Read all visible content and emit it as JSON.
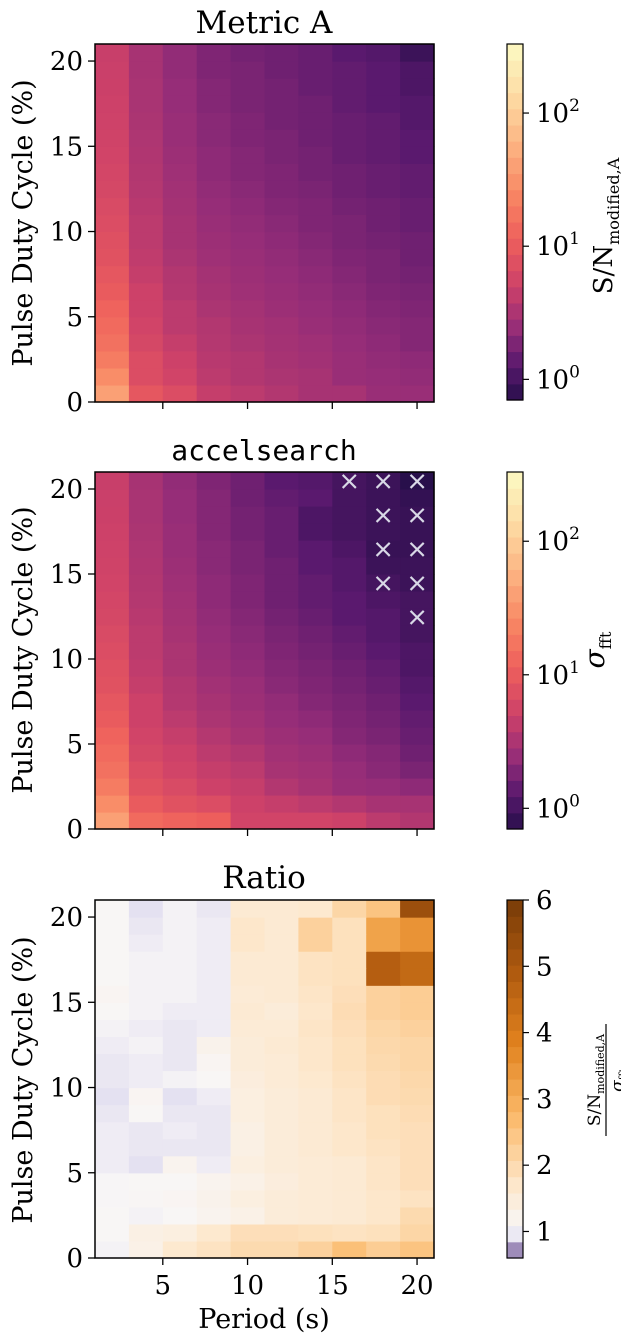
{
  "chart_data": [
    {
      "type": "heatmap",
      "title": "Metric A",
      "title_font": "serif",
      "ylabel": "Pulse Duty Cycle (%)",
      "xlabel": "",
      "x": [
        2,
        4,
        6,
        8,
        10,
        12,
        14,
        16,
        18,
        20
      ],
      "y": [
        0.5,
        1.5,
        2.5,
        3.5,
        4.5,
        5.5,
        6.5,
        7.5,
        8.5,
        9.5,
        10.5,
        11.5,
        12.5,
        13.5,
        14.5,
        15.5,
        16.5,
        17.5,
        18.5,
        19.5,
        20.5
      ],
      "xlim": [
        1,
        21
      ],
      "ylim": [
        0,
        21
      ],
      "yticks": [
        0,
        5,
        10,
        15,
        20
      ],
      "ytick_labels": [
        "0",
        "5",
        "10",
        "15",
        "20"
      ],
      "xticks": [
        5,
        10,
        15,
        20
      ],
      "colorbar": {
        "scale": "log",
        "vmin": 0.7,
        "vmax": 330,
        "cmap": "magma",
        "ticks": [
          1,
          10,
          100
        ],
        "tick_labels": [
          "10⁰",
          "10¹",
          "10²"
        ],
        "label": "S/N_modified,A"
      },
      "values": [
        [
          40,
          9,
          7,
          4.5,
          4,
          3.5,
          3,
          3,
          2.5,
          2.5
        ],
        [
          28,
          7,
          5.5,
          4,
          3.5,
          3.2,
          3,
          2.5,
          2.4,
          2.3
        ],
        [
          20,
          7,
          5,
          3.8,
          3.5,
          3,
          2.8,
          2.5,
          2.3,
          2.2
        ],
        [
          16,
          6,
          4.5,
          3.6,
          3.2,
          2.9,
          2.7,
          2.4,
          2.2,
          2
        ],
        [
          14,
          5.5,
          4,
          3.5,
          3,
          2.8,
          2.5,
          2.3,
          2.1,
          2
        ],
        [
          12,
          5,
          4,
          3.2,
          2.9,
          2.6,
          2.4,
          2.2,
          2,
          1.9
        ],
        [
          10,
          5,
          3.6,
          3,
          2.7,
          2.5,
          2.3,
          2.1,
          1.9,
          1.8
        ],
        [
          9,
          4.5,
          3.5,
          2.9,
          2.6,
          2.4,
          2.2,
          2,
          1.8,
          1.7
        ],
        [
          8,
          4.2,
          3.2,
          2.7,
          2.5,
          2.3,
          2.1,
          1.9,
          1.8,
          1.6
        ],
        [
          7.5,
          4,
          3,
          2.6,
          2.4,
          2.2,
          2,
          1.8,
          1.7,
          1.6
        ],
        [
          7,
          4,
          3,
          2.5,
          2.3,
          2.1,
          1.9,
          1.8,
          1.6,
          1.5
        ],
        [
          6.5,
          3.8,
          2.9,
          2.4,
          2.2,
          2,
          1.9,
          1.7,
          1.6,
          1.5
        ],
        [
          6,
          3.6,
          2.8,
          2.3,
          2.1,
          1.9,
          1.8,
          1.6,
          1.5,
          1.4
        ],
        [
          5.8,
          3.5,
          2.7,
          2.2,
          2,
          1.9,
          1.7,
          1.6,
          1.5,
          1.4
        ],
        [
          5.5,
          3.4,
          2.6,
          2.2,
          2,
          1.8,
          1.7,
          1.5,
          1.4,
          1.3
        ],
        [
          5.3,
          3.3,
          2.5,
          2.1,
          1.9,
          1.8,
          1.6,
          1.5,
          1.4,
          1.3
        ],
        [
          5.1,
          3.2,
          2.5,
          2.1,
          1.9,
          1.7,
          1.6,
          1.5,
          1.4,
          1.2
        ],
        [
          5,
          3.1,
          2.4,
          2,
          1.8,
          1.7,
          1.6,
          1.4,
          1.3,
          1.2
        ],
        [
          4.9,
          3.1,
          2.4,
          2,
          1.8,
          1.7,
          1.5,
          1.4,
          1.3,
          1.1
        ],
        [
          4.8,
          3,
          2.3,
          1.9,
          1.8,
          1.6,
          1.5,
          1.4,
          1.3,
          1.1
        ],
        [
          4.7,
          3,
          2.3,
          1.9,
          1.7,
          1.6,
          1.5,
          1.3,
          1.2,
          0.9
        ]
      ]
    },
    {
      "type": "heatmap",
      "title": "accelsearch",
      "title_font": "mono",
      "ylabel": "Pulse Duty Cycle (%)",
      "xlabel": "",
      "x": [
        2,
        4,
        6,
        8,
        10,
        12,
        14,
        16,
        18,
        20
      ],
      "y": [
        0.5,
        1.5,
        2.5,
        3.5,
        4.5,
        5.5,
        6.5,
        7.5,
        8.5,
        9.5,
        10.5,
        11.5,
        12.5,
        13.5,
        14.5,
        15.5,
        16.5,
        17.5,
        18.5,
        19.5,
        20.5
      ],
      "xlim": [
        1,
        21
      ],
      "ylim": [
        0,
        21
      ],
      "yticks": [
        0,
        5,
        10,
        15,
        20
      ],
      "ytick_labels": [
        "0",
        "5",
        "10",
        "15",
        "20"
      ],
      "xticks": [
        5,
        10,
        15,
        20
      ],
      "colorbar": {
        "scale": "log",
        "vmin": 0.7,
        "vmax": 330,
        "cmap": "magma",
        "ticks": [
          1,
          10,
          100
        ],
        "tick_labels": [
          "10⁰",
          "10¹",
          "10²"
        ],
        "label": "σ_fft"
      },
      "values": [
        [
          40,
          14,
          12,
          11,
          5.5,
          5.5,
          5.5,
          5,
          4,
          3.5
        ],
        [
          28,
          10,
          8,
          7,
          5,
          4.5,
          4,
          3.5,
          3,
          3
        ],
        [
          20,
          8,
          6.5,
          5,
          4.5,
          3.5,
          3,
          2.5,
          2.4,
          2.2
        ],
        [
          16,
          7,
          5.5,
          4.5,
          4,
          3,
          2.8,
          2.4,
          2.1,
          1.8
        ],
        [
          14,
          6,
          5,
          4,
          3.5,
          2.8,
          2.6,
          2.2,
          2,
          1.6
        ],
        [
          12,
          5.5,
          4.5,
          3.6,
          3,
          2.6,
          2.4,
          2,
          1.8,
          1.5
        ],
        [
          10,
          5,
          4,
          3.2,
          2.8,
          2.4,
          2.2,
          1.9,
          1.7,
          1.4
        ],
        [
          9,
          5,
          3.6,
          3,
          2.6,
          2.3,
          2,
          1.8,
          1.6,
          1.3
        ],
        [
          8,
          4.5,
          3.5,
          2.8,
          2.5,
          2.1,
          1.9,
          1.7,
          1.5,
          1.2
        ],
        [
          7.5,
          4.2,
          3.2,
          2.6,
          2.3,
          2,
          1.8,
          1.6,
          1.4,
          1.1
        ],
        [
          7,
          4,
          3.2,
          2.5,
          2.2,
          1.9,
          1.7,
          1.5,
          1.3,
          1.1
        ],
        [
          6.5,
          4,
          3,
          2.4,
          2.1,
          1.8,
          1.6,
          1.4,
          1.2,
          1
        ],
        [
          6,
          3.8,
          2.9,
          2.3,
          2,
          1.7,
          1.5,
          1.3,
          1.2,
          1
        ],
        [
          5.8,
          3.6,
          2.8,
          2.2,
          1.9,
          1.6,
          1.4,
          1.3,
          1.1,
          1
        ],
        [
          5.5,
          3.5,
          2.7,
          2.2,
          1.9,
          1.6,
          1.4,
          1.2,
          1,
          0.9
        ],
        [
          5.3,
          3.4,
          2.6,
          2.1,
          1.8,
          1.6,
          1.3,
          1.2,
          0.9,
          0.9
        ],
        [
          5.1,
          3.3,
          2.5,
          2.1,
          1.8,
          1.5,
          1.3,
          1.1,
          0.85,
          0.85
        ],
        [
          5,
          3.2,
          2.5,
          2,
          1.7,
          1.5,
          1.1,
          1,
          0.9,
          0.85
        ],
        [
          4.9,
          3.1,
          2.4,
          2,
          1.7,
          1.5,
          1.1,
          1,
          0.9,
          0.85
        ],
        [
          4.8,
          3.1,
          2.4,
          2,
          1.6,
          1.4,
          1.3,
          1,
          0.9,
          0.8
        ],
        [
          4.7,
          3,
          2.3,
          1.9,
          1.6,
          1.3,
          1.2,
          1,
          0.9,
          0.55
        ]
      ],
      "markers": {
        "symbol": "×",
        "points": [
          [
            20,
            12
          ],
          [
            18,
            14
          ],
          [
            20,
            14
          ],
          [
            18,
            16
          ],
          [
            20,
            16
          ],
          [
            18,
            18
          ],
          [
            20,
            18
          ],
          [
            16,
            20
          ],
          [
            18,
            20
          ],
          [
            20,
            20
          ]
        ]
      }
    },
    {
      "type": "heatmap",
      "title": "Ratio",
      "title_font": "serif",
      "ylabel": "Pulse Duty Cycle (%)",
      "xlabel": "Period (s)",
      "x": [
        2,
        4,
        6,
        8,
        10,
        12,
        14,
        16,
        18,
        20
      ],
      "y": [
        0.5,
        1.5,
        2.5,
        3.5,
        4.5,
        5.5,
        6.5,
        7.5,
        8.5,
        9.5,
        10.5,
        11.5,
        12.5,
        13.5,
        14.5,
        15.5,
        16.5,
        17.5,
        18.5,
        19.5,
        20.5
      ],
      "xlim": [
        1,
        21
      ],
      "ylim": [
        0,
        21
      ],
      "yticks": [
        0,
        5,
        10,
        15,
        20
      ],
      "ytick_labels": [
        "0",
        "5",
        "10",
        "15",
        "20"
      ],
      "xticks": [
        5,
        10,
        15,
        20
      ],
      "xtick_labels": [
        "5",
        "10",
        "15",
        "20"
      ],
      "colorbar": {
        "scale": "linear",
        "vmin": 0.6,
        "vmax": 6,
        "cmap": "PuOr_r",
        "ticks": [
          1,
          2,
          3,
          4,
          5,
          6
        ],
        "tick_labels": [
          "1",
          "2",
          "3",
          "4",
          "5",
          "6"
        ],
        "label": "S/N_modified,A / σ_fft"
      },
      "values": [
        [
          1.05,
          1.3,
          1.65,
          1.8,
          2,
          2,
          2.2,
          2.6,
          2.3,
          2.5
        ],
        [
          1.1,
          1.35,
          1.4,
          1.65,
          1.9,
          1.9,
          1.85,
          1.8,
          1.85,
          2.1
        ],
        [
          1.1,
          1.05,
          1.1,
          1.2,
          1.3,
          1.5,
          1.55,
          1.6,
          1.7,
          2
        ],
        [
          1.08,
          1.12,
          1.15,
          1.25,
          1.4,
          1.5,
          1.55,
          1.6,
          1.7,
          1.8
        ],
        [
          1.08,
          1.1,
          1.1,
          1.2,
          1.3,
          1.45,
          1.55,
          1.6,
          1.75,
          1.9
        ],
        [
          1,
          0.9,
          1.2,
          1,
          1.4,
          1.5,
          1.55,
          1.6,
          1.75,
          1.9
        ],
        [
          1,
          0.95,
          0.95,
          0.95,
          1.35,
          1.5,
          1.6,
          1.7,
          1.8,
          1.9
        ],
        [
          1,
          0.95,
          1,
          0.95,
          1.35,
          1.5,
          1.6,
          1.7,
          1.85,
          1.9
        ],
        [
          0.95,
          1.1,
          0.95,
          0.95,
          1.4,
          1.5,
          1.6,
          1.75,
          1.85,
          1.95
        ],
        [
          0.9,
          1.15,
          0.9,
          1,
          1.4,
          1.5,
          1.6,
          1.75,
          1.95,
          2
        ],
        [
          0.95,
          1,
          1.05,
          1.1,
          1.45,
          1.55,
          1.65,
          1.8,
          1.95,
          2.05
        ],
        [
          0.95,
          1,
          0.95,
          1.15,
          1.5,
          1.55,
          1.7,
          1.85,
          2,
          2.1
        ],
        [
          1,
          1.05,
          0.95,
          1.25,
          1.5,
          1.6,
          1.7,
          1.85,
          2.05,
          2.1
        ],
        [
          1.05,
          1,
          0.95,
          1,
          1.55,
          1.55,
          1.75,
          1.9,
          2.1,
          2.2
        ],
        [
          1.1,
          1.05,
          1,
          1,
          1.6,
          1.5,
          1.7,
          1.95,
          2.2,
          2.3
        ],
        [
          1.15,
          1.05,
          1.05,
          1,
          1.55,
          1.6,
          1.75,
          1.9,
          2.2,
          2.3
        ],
        [
          1.1,
          1.05,
          1.05,
          1,
          1.6,
          1.6,
          1.8,
          1.85,
          4.8,
          4.5
        ],
        [
          1.1,
          1.05,
          1.05,
          1,
          1.6,
          1.6,
          1.8,
          1.85,
          4.8,
          4.5
        ],
        [
          1.1,
          1,
          1.05,
          1,
          1.7,
          1.6,
          2.2,
          1.85,
          3.2,
          3.5
        ],
        [
          1.1,
          0.95,
          1.05,
          1,
          1.7,
          1.6,
          2.2,
          1.85,
          3.2,
          3.5
        ],
        [
          1.1,
          0.9,
          1.05,
          0.95,
          1.6,
          1.6,
          1.65,
          2.1,
          2.5,
          5.3
        ]
      ]
    }
  ]
}
